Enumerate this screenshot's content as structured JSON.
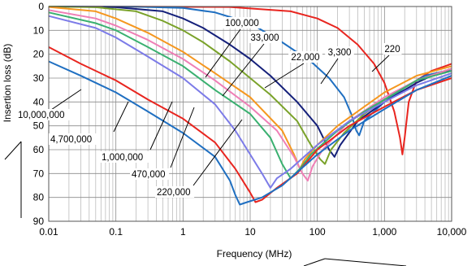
{
  "chart_data": {
    "type": "line",
    "title": "",
    "xlabel": "Frequency (MHz)",
    "ylabel": "Insertion  loss (dB)",
    "x_scale": "log",
    "xlim": [
      0.01,
      10000
    ],
    "ylim": [
      0,
      90
    ],
    "y_inverted": true,
    "grid": true,
    "x_ticks": [
      "0.01",
      "0.1",
      "1",
      "10",
      "100",
      "1,000",
      "10,000"
    ],
    "y_ticks": [
      "0",
      "10",
      "20",
      "30",
      "40",
      "50",
      "60",
      "70",
      "80",
      "90"
    ],
    "series": [
      {
        "name": "220",
        "color": "#e8251f",
        "points": [
          [
            0.01,
            0
          ],
          [
            5,
            0.2
          ],
          [
            40,
            2
          ],
          [
            100,
            5
          ],
          [
            200,
            9
          ],
          [
            400,
            16
          ],
          [
            700,
            24
          ],
          [
            1000,
            32
          ],
          [
            1400,
            44
          ],
          [
            1700,
            55
          ],
          [
            1850,
            62
          ],
          [
            2000,
            55
          ],
          [
            2300,
            40
          ],
          [
            3000,
            31
          ],
          [
            5000,
            27
          ],
          [
            8000,
            25
          ],
          [
            10000,
            24
          ]
        ]
      },
      {
        "name": "3,300",
        "color": "#1f6fc1",
        "points": [
          [
            0.01,
            0
          ],
          [
            0.2,
            0.1
          ],
          [
            1,
            0.6
          ],
          [
            3,
            2.5
          ],
          [
            10,
            7
          ],
          [
            30,
            15
          ],
          [
            80,
            23
          ],
          [
            150,
            30
          ],
          [
            250,
            38
          ],
          [
            320,
            45
          ],
          [
            380,
            52
          ],
          [
            420,
            54
          ],
          [
            500,
            48
          ],
          [
            700,
            44
          ],
          [
            1000,
            40
          ],
          [
            2000,
            34
          ],
          [
            4000,
            29
          ],
          [
            8000,
            27
          ],
          [
            10000,
            27
          ]
        ]
      },
      {
        "name": "22,000",
        "color": "#15207a",
        "points": [
          [
            0.01,
            0
          ],
          [
            0.1,
            0.3
          ],
          [
            0.5,
            2
          ],
          [
            1,
            5
          ],
          [
            2,
            9
          ],
          [
            5,
            16
          ],
          [
            10,
            22
          ],
          [
            20,
            29
          ],
          [
            50,
            40
          ],
          [
            100,
            50
          ],
          [
            150,
            60
          ],
          [
            180,
            63
          ],
          [
            220,
            58
          ],
          [
            400,
            48
          ],
          [
            1000,
            40
          ],
          [
            3000,
            32
          ],
          [
            6000,
            28
          ],
          [
            10000,
            27
          ]
        ]
      },
      {
        "name": "33,000",
        "color": "#7aa22a",
        "points": [
          [
            0.01,
            0
          ],
          [
            0.05,
            0.3
          ],
          [
            0.2,
            2
          ],
          [
            0.5,
            6
          ],
          [
            1,
            10
          ],
          [
            2,
            15
          ],
          [
            5,
            23
          ],
          [
            10,
            30
          ],
          [
            20,
            37
          ],
          [
            50,
            48
          ],
          [
            80,
            58
          ],
          [
            110,
            64
          ],
          [
            130,
            66
          ],
          [
            160,
            60
          ],
          [
            250,
            53
          ],
          [
            500,
            45
          ],
          [
            1000,
            39
          ],
          [
            3000,
            31
          ],
          [
            10000,
            26
          ]
        ]
      },
      {
        "name": "100,000",
        "color": "#f5971f",
        "points": [
          [
            0.01,
            0.2
          ],
          [
            0.05,
            2
          ],
          [
            0.1,
            5
          ],
          [
            0.3,
            11
          ],
          [
            1,
            19
          ],
          [
            3,
            28
          ],
          [
            10,
            38
          ],
          [
            30,
            52
          ],
          [
            45,
            62
          ],
          [
            55,
            68
          ],
          [
            65,
            64
          ],
          [
            100,
            58
          ],
          [
            200,
            50
          ],
          [
            500,
            42
          ],
          [
            1000,
            36
          ],
          [
            3000,
            29
          ],
          [
            10000,
            25
          ]
        ]
      },
      {
        "name": "",
        "color": "#ef7fb6",
        "points": [
          [
            0.01,
            1.5
          ],
          [
            0.05,
            5
          ],
          [
            0.1,
            8
          ],
          [
            0.3,
            14
          ],
          [
            1,
            22
          ],
          [
            3,
            31
          ],
          [
            10,
            42
          ],
          [
            25,
            52
          ],
          [
            45,
            63
          ],
          [
            60,
            70
          ],
          [
            72,
            73
          ],
          [
            85,
            67
          ],
          [
            120,
            60
          ],
          [
            300,
            48
          ],
          [
            1000,
            38
          ],
          [
            3000,
            31
          ],
          [
            10000,
            26
          ]
        ]
      },
      {
        "name": "220,000",
        "color": "#3ab070",
        "points": [
          [
            0.01,
            2.5
          ],
          [
            0.05,
            7
          ],
          [
            0.1,
            10
          ],
          [
            0.3,
            17
          ],
          [
            1,
            25
          ],
          [
            3,
            35
          ],
          [
            10,
            45
          ],
          [
            20,
            55
          ],
          [
            30,
            66
          ],
          [
            40,
            72
          ],
          [
            55,
            68
          ],
          [
            80,
            62
          ],
          [
            200,
            52
          ],
          [
            500,
            44
          ],
          [
            1000,
            39
          ],
          [
            3000,
            31
          ],
          [
            10000,
            27
          ]
        ]
      },
      {
        "name": "470,000",
        "color": "#7c7be8",
        "points": [
          [
            0.01,
            4
          ],
          [
            0.05,
            9
          ],
          [
            0.1,
            13
          ],
          [
            0.3,
            21
          ],
          [
            1,
            30
          ],
          [
            3,
            41
          ],
          [
            6,
            52
          ],
          [
            10,
            62
          ],
          [
            15,
            70
          ],
          [
            20,
            76
          ],
          [
            25,
            72
          ],
          [
            40,
            68
          ],
          [
            100,
            58
          ],
          [
            300,
            48
          ],
          [
            1000,
            40
          ],
          [
            3000,
            33
          ],
          [
            10000,
            28
          ]
        ]
      },
      {
        "name": "1,000,000",
        "color": "#e8251f",
        "points": [
          [
            0.01,
            17
          ],
          [
            0.03,
            24
          ],
          [
            0.1,
            31
          ],
          [
            0.3,
            39
          ],
          [
            1,
            47
          ],
          [
            3,
            57
          ],
          [
            6,
            68
          ],
          [
            10,
            78
          ],
          [
            12,
            82
          ],
          [
            15,
            81
          ],
          [
            25,
            76
          ],
          [
            50,
            70
          ],
          [
            100,
            60
          ],
          [
            300,
            50
          ],
          [
            1000,
            42
          ],
          [
            3000,
            35
          ],
          [
            10000,
            30
          ]
        ]
      },
      {
        "name": "4,700,000",
        "color": "#1f6fc1",
        "points": [
          [
            0.01,
            23
          ],
          [
            0.03,
            29
          ],
          [
            0.1,
            36
          ],
          [
            0.3,
            44
          ],
          [
            1,
            53
          ],
          [
            3,
            63
          ],
          [
            5,
            73
          ],
          [
            6,
            79
          ],
          [
            7,
            83
          ],
          [
            9,
            82
          ],
          [
            15,
            80
          ],
          [
            30,
            75
          ],
          [
            100,
            62
          ],
          [
            300,
            52
          ],
          [
            1000,
            43
          ],
          [
            3000,
            35
          ],
          [
            10000,
            29
          ]
        ]
      }
    ],
    "labels": [
      "100,000",
      "33,000",
      "22,000",
      "3,300",
      "220",
      "10,000,000",
      "4,700,000",
      "1,000,000",
      "470,000",
      "220,000"
    ]
  }
}
